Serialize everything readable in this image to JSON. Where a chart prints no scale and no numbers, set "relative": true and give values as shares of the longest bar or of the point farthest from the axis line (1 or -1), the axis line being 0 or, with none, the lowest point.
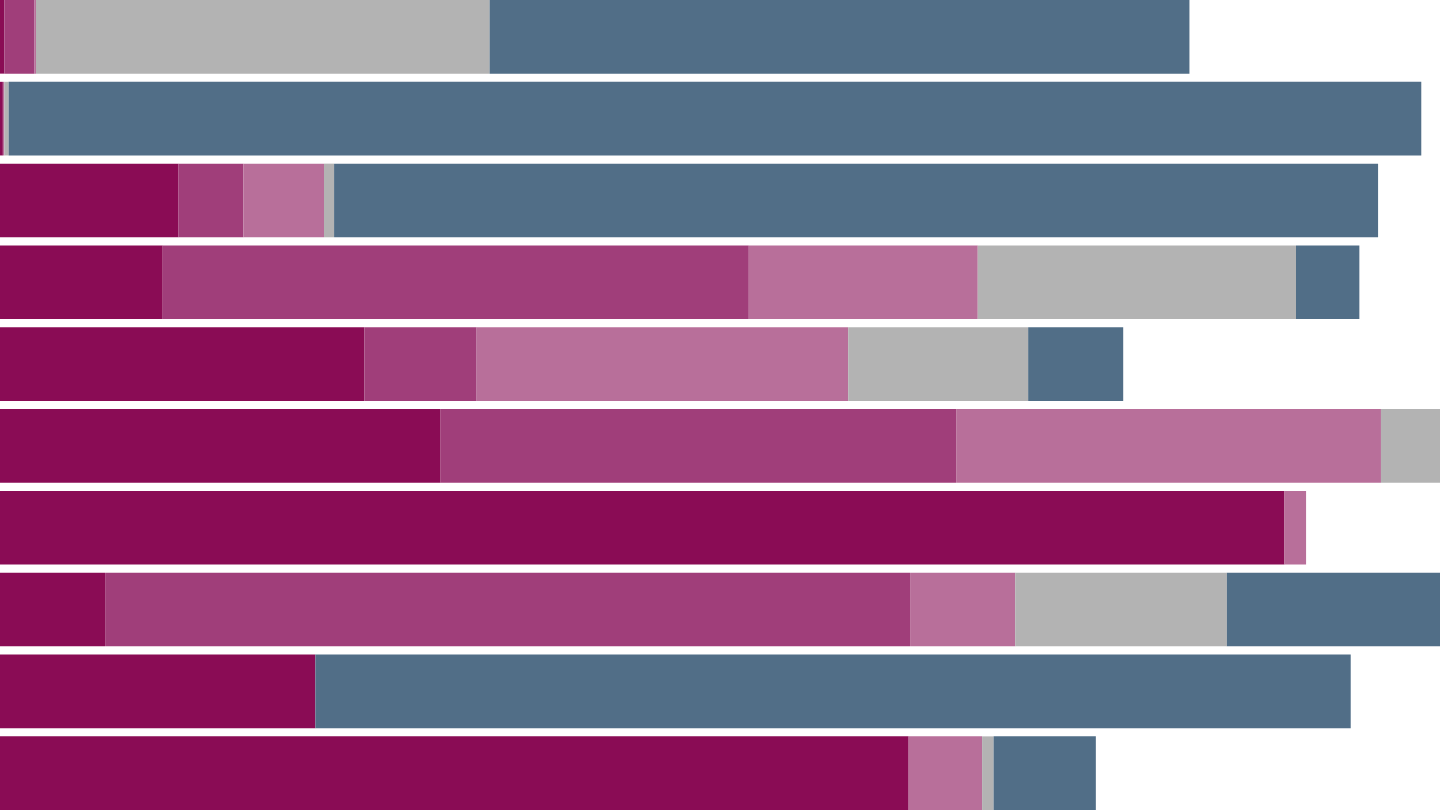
{
  "chart_data": {
    "type": "bar",
    "orientation": "horizontal",
    "stacked": true,
    "relative": true,
    "grid": false,
    "categories": [
      null,
      null,
      null,
      null,
      null,
      null,
      null,
      null,
      null,
      null
    ],
    "series": [
      {
        "color": "#8a0c55",
        "values": [
          0.003,
          0.002,
          0.124,
          0.113,
          0.253,
          0.306,
          0.892,
          0.073,
          0.219,
          0.631
        ]
      },
      {
        "color": "#a03e7a",
        "values": [
          0.021,
          null,
          0.045,
          0.407,
          0.078,
          0.358,
          0,
          0.559,
          0,
          0
        ]
      },
      {
        "color": "#b86f9a",
        "values": [
          0.001,
          0.001,
          0.056,
          0.159,
          0.258,
          0.295,
          0.015,
          0.073,
          0,
          0.051
        ]
      },
      {
        "color": "#b3b3b3",
        "values": [
          0.315,
          0.003,
          0.007,
          0.221,
          0.125,
          0.041,
          0,
          0.147,
          0,
          0.008
        ]
      },
      {
        "color": "#516e87",
        "values": [
          0.486,
          0.981,
          0.725,
          0.044,
          0.066,
          0,
          0,
          0.148,
          0.719,
          0.071
        ]
      }
    ]
  }
}
